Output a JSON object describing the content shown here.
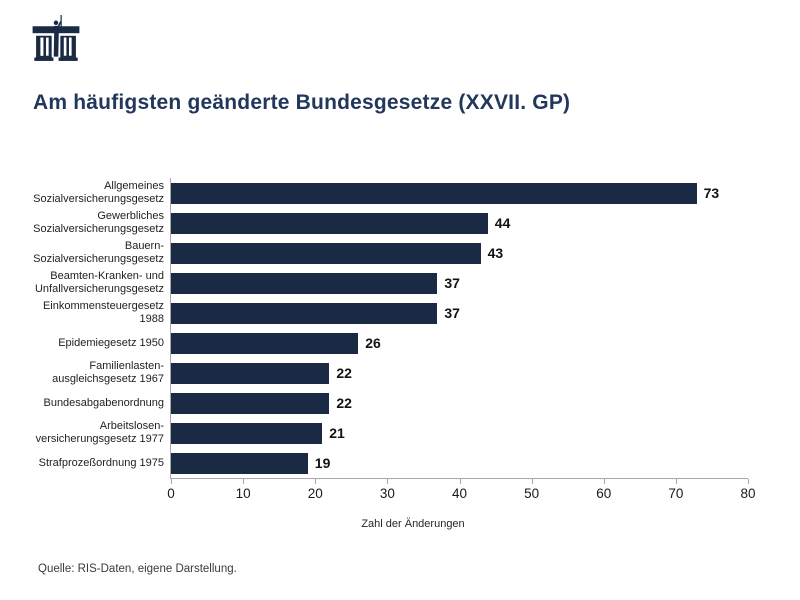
{
  "logo": {
    "icon": "parliament-building-icon",
    "color": "#1b2a44"
  },
  "header": {
    "title": "Am häufigsten geänderte Bundesgesetze (XXVII. GP)"
  },
  "footer": {
    "source": "Quelle: RIS-Daten, eigene Darstellung."
  },
  "chart_data": {
    "type": "bar",
    "orientation": "horizontal",
    "title": "Am häufigsten geänderte Bundesgesetze (XXVII. GP)",
    "categories": [
      "Allgemeines Sozialversicherungsgesetz",
      "Gewerbliches Sozialversicherungsgesetz",
      "Bauern-Sozialversicherungsgesetz",
      "Beamten-Kranken- und Unfallversicherungsgesetz",
      "Einkommensteuergesetz 1988",
      "Epidemiegesetz 1950",
      "Familienlastenausgleichsgesetz 1967",
      "Bundesabgabenordnung",
      "Arbeitslosenversicherungsgesetz 1977",
      "Strafprozeßordnung 1975"
    ],
    "category_label_lines": [
      [
        "Allgemeines",
        "Sozialversicherungsgesetz"
      ],
      [
        "Gewerbliches",
        "Sozialversicherungsgesetz"
      ],
      [
        "Bauern-",
        "Sozialversicherungsgesetz"
      ],
      [
        "Beamten-Kranken- und",
        "Unfallversicherungsgesetz"
      ],
      [
        "Einkommensteuergesetz 1988"
      ],
      [
        "Epidemiegesetz 1950"
      ],
      [
        "Familienlasten-",
        "ausgleichsgesetz 1967"
      ],
      [
        "Bundesabgabenordnung"
      ],
      [
        "Arbeitslosen-",
        "versicherungsgesetz 1977"
      ],
      [
        "Strafprozeßordnung 1975"
      ]
    ],
    "values": [
      73,
      44,
      43,
      37,
      37,
      26,
      22,
      22,
      21,
      19
    ],
    "xlabel": "Zahl der Änderungen",
    "xlim": [
      0,
      80
    ],
    "xticks": [
      0,
      10,
      20,
      30,
      40,
      50,
      60,
      70,
      80
    ],
    "bar_color": "#1b2a44",
    "grid": false,
    "legend": false,
    "value_labels": true
  }
}
